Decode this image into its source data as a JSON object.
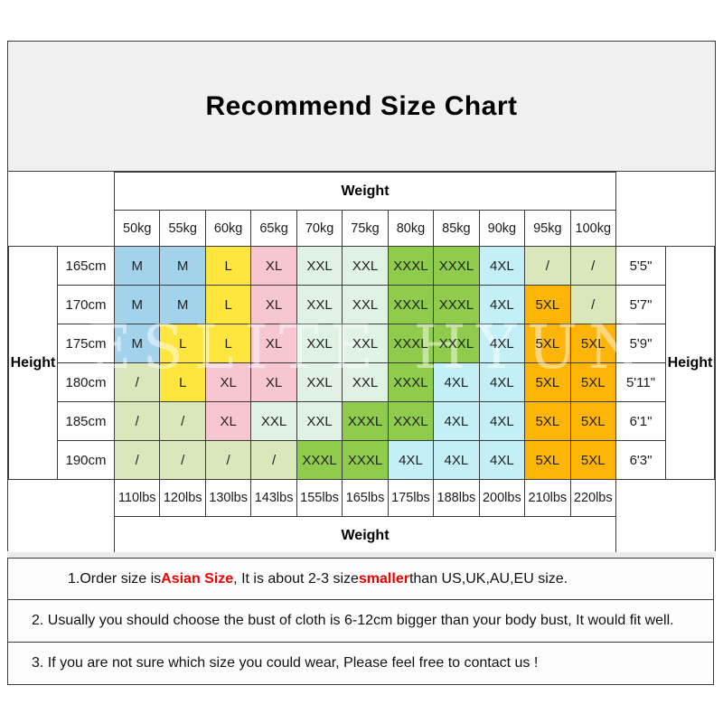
{
  "title": "Recommend Size Chart",
  "watermark": "ESLITE HYUN",
  "colors": {
    "blue": "#A3D3EB",
    "yellow": "#FFE63E",
    "pink": "#F8C6D1",
    "mint": "#DFF2E4",
    "green": "#8FCB4D",
    "cyan": "#C3EFF7",
    "orange": "#FFB508",
    "pale": "#D9E7BA",
    "title_bg": "#F0F0F0",
    "border": "#3C3C3C",
    "note_red": "#F00000"
  },
  "chart_data": {
    "type": "table",
    "title": "Recommend Size Chart",
    "weight_label": "Weight",
    "height_label": "Height",
    "weights_kg": [
      "50kg",
      "55kg",
      "60kg",
      "65kg",
      "70kg",
      "75kg",
      "80kg",
      "85kg",
      "90kg",
      "95kg",
      "100kg"
    ],
    "weights_lbs": [
      "110lbs",
      "120lbs",
      "130lbs",
      "143lbs",
      "155lbs",
      "165lbs",
      "175lbs",
      "188lbs",
      "200lbs",
      "210lbs",
      "220lbs"
    ],
    "rows": [
      {
        "height_cm": "165cm",
        "height_ft": "5'5\"",
        "cells": [
          {
            "size": "M",
            "color": "blue"
          },
          {
            "size": "M",
            "color": "blue"
          },
          {
            "size": "L",
            "color": "yellow"
          },
          {
            "size": "XL",
            "color": "pink"
          },
          {
            "size": "XXL",
            "color": "mint"
          },
          {
            "size": "XXL",
            "color": "mint"
          },
          {
            "size": "XXXL",
            "color": "green"
          },
          {
            "size": "XXXL",
            "color": "green"
          },
          {
            "size": "4XL",
            "color": "cyan"
          },
          {
            "size": "/",
            "color": "pale"
          },
          {
            "size": "/",
            "color": "pale"
          }
        ]
      },
      {
        "height_cm": "170cm",
        "height_ft": "5'7\"",
        "cells": [
          {
            "size": "M",
            "color": "blue"
          },
          {
            "size": "M",
            "color": "blue"
          },
          {
            "size": "L",
            "color": "yellow"
          },
          {
            "size": "XL",
            "color": "pink"
          },
          {
            "size": "XXL",
            "color": "mint"
          },
          {
            "size": "XXL",
            "color": "mint"
          },
          {
            "size": "XXXL",
            "color": "green"
          },
          {
            "size": "XXXL",
            "color": "green"
          },
          {
            "size": "4XL",
            "color": "cyan"
          },
          {
            "size": "5XL",
            "color": "orange"
          },
          {
            "size": "/",
            "color": "pale"
          }
        ]
      },
      {
        "height_cm": "175cm",
        "height_ft": "5'9\"",
        "cells": [
          {
            "size": "M",
            "color": "blue"
          },
          {
            "size": "L",
            "color": "yellow"
          },
          {
            "size": "L",
            "color": "yellow"
          },
          {
            "size": "XL",
            "color": "pink"
          },
          {
            "size": "XXL",
            "color": "mint"
          },
          {
            "size": "XXL",
            "color": "mint"
          },
          {
            "size": "XXXL",
            "color": "green"
          },
          {
            "size": "XXXL",
            "color": "green"
          },
          {
            "size": "4XL",
            "color": "cyan"
          },
          {
            "size": "5XL",
            "color": "orange"
          },
          {
            "size": "5XL",
            "color": "orange"
          }
        ]
      },
      {
        "height_cm": "180cm",
        "height_ft": "5'11\"",
        "cells": [
          {
            "size": "/",
            "color": "pale"
          },
          {
            "size": "L",
            "color": "yellow"
          },
          {
            "size": "XL",
            "color": "pink"
          },
          {
            "size": "XL",
            "color": "pink"
          },
          {
            "size": "XXL",
            "color": "mint"
          },
          {
            "size": "XXL",
            "color": "mint"
          },
          {
            "size": "XXXL",
            "color": "green"
          },
          {
            "size": "4XL",
            "color": "cyan"
          },
          {
            "size": "4XL",
            "color": "cyan"
          },
          {
            "size": "5XL",
            "color": "orange"
          },
          {
            "size": "5XL",
            "color": "orange"
          }
        ]
      },
      {
        "height_cm": "185cm",
        "height_ft": "6'1\"",
        "cells": [
          {
            "size": "/",
            "color": "pale"
          },
          {
            "size": "/",
            "color": "pale"
          },
          {
            "size": "XL",
            "color": "pink"
          },
          {
            "size": "XXL",
            "color": "mint"
          },
          {
            "size": "XXL",
            "color": "mint"
          },
          {
            "size": "XXXL",
            "color": "green"
          },
          {
            "size": "XXXL",
            "color": "green"
          },
          {
            "size": "4XL",
            "color": "cyan"
          },
          {
            "size": "4XL",
            "color": "cyan"
          },
          {
            "size": "5XL",
            "color": "orange"
          },
          {
            "size": "5XL",
            "color": "orange"
          }
        ]
      },
      {
        "height_cm": "190cm",
        "height_ft": "6'3\"",
        "cells": [
          {
            "size": "/",
            "color": "pale"
          },
          {
            "size": "/",
            "color": "pale"
          },
          {
            "size": "/",
            "color": "pale"
          },
          {
            "size": "/",
            "color": "pale"
          },
          {
            "size": "XXXL",
            "color": "green"
          },
          {
            "size": "XXXL",
            "color": "green"
          },
          {
            "size": "4XL",
            "color": "cyan"
          },
          {
            "size": "4XL",
            "color": "cyan"
          },
          {
            "size": "4XL",
            "color": "cyan"
          },
          {
            "size": "5XL",
            "color": "orange"
          },
          {
            "size": "5XL",
            "color": "orange"
          }
        ]
      }
    ]
  },
  "notes": [
    {
      "segments": [
        {
          "text": "1.Order size is ",
          "style": "normal"
        },
        {
          "text": "Asian Size",
          "style": "red"
        },
        {
          "text": ", It is about 2-3 size ",
          "style": "normal"
        },
        {
          "text": "smaller",
          "style": "red"
        },
        {
          "text": " than US,UK,AU,EU size.",
          "style": "normal"
        }
      ]
    },
    {
      "segments": [
        {
          "text": "2. Usually you should choose the bust of cloth is 6-12cm bigger than your body bust, It would fit well.",
          "style": "normal"
        }
      ]
    },
    {
      "segments": [
        {
          "text": "3. If you are not sure which size you could wear, Please feel free to contact us !",
          "style": "normal"
        }
      ]
    }
  ]
}
